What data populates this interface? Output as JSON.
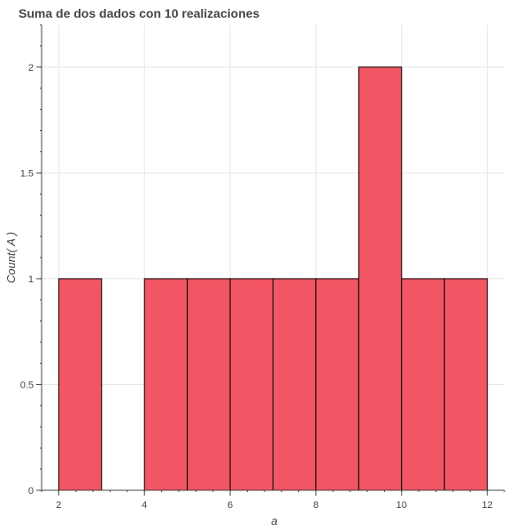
{
  "chart_data": {
    "type": "bar",
    "title": "Suma de dos dados con 10 realizaciones",
    "xlabel": "a",
    "ylabel": "Count( A )",
    "bins": [
      {
        "left": 2,
        "right": 3,
        "count": 1
      },
      {
        "left": 3,
        "right": 4,
        "count": 0
      },
      {
        "left": 4,
        "right": 5,
        "count": 1
      },
      {
        "left": 5,
        "right": 6,
        "count": 1
      },
      {
        "left": 6,
        "right": 7,
        "count": 1
      },
      {
        "left": 7,
        "right": 8,
        "count": 1
      },
      {
        "left": 8,
        "right": 9,
        "count": 1
      },
      {
        "left": 9,
        "right": 10,
        "count": 2
      },
      {
        "left": 10,
        "right": 11,
        "count": 1
      },
      {
        "left": 11,
        "right": 12,
        "count": 1
      }
    ],
    "xlim": [
      1.6,
      12.4
    ],
    "ylim": [
      0,
      2.2
    ],
    "x_ticks": [
      {
        "value": 2,
        "label": "2"
      },
      {
        "value": 4,
        "label": "4"
      },
      {
        "value": 6,
        "label": "6"
      },
      {
        "value": 8,
        "label": "8"
      },
      {
        "value": 10,
        "label": "10"
      },
      {
        "value": 12,
        "label": "12"
      }
    ],
    "x_minor_step": 0.4,
    "y_ticks": [
      {
        "value": 0,
        "label": "0"
      },
      {
        "value": 0.5,
        "label": "0.5"
      },
      {
        "value": 1,
        "label": "1"
      },
      {
        "value": 1.5,
        "label": "1.5"
      },
      {
        "value": 2,
        "label": "2"
      }
    ],
    "y_minor_step": 0.1,
    "grid": true,
    "bar_color": "#f25563",
    "bar_edge_color": "#000000",
    "grid_color": "#e5e5e5",
    "axis_color": "#444444"
  }
}
